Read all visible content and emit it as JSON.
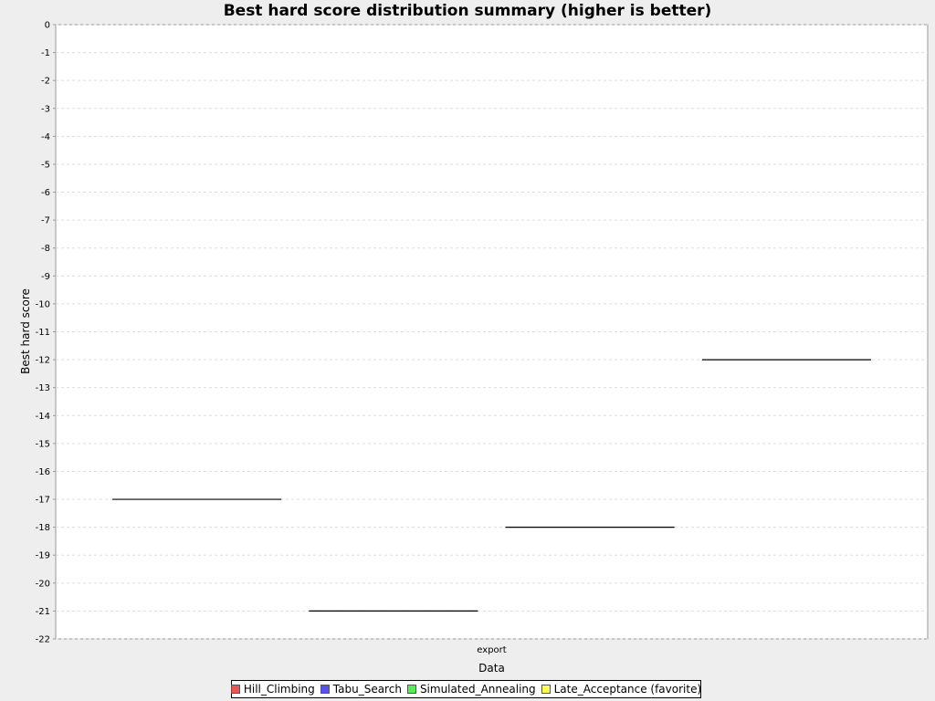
{
  "chart_data": {
    "type": "box",
    "title": "Best hard score distribution summary (higher is better)",
    "xlabel": "Data",
    "ylabel": "Best hard score",
    "categories": [
      "export"
    ],
    "ylim": [
      -22,
      0
    ],
    "yticks": [
      0,
      -1,
      -2,
      -3,
      -4,
      -5,
      -6,
      -7,
      -8,
      -9,
      -10,
      -11,
      -12,
      -13,
      -14,
      -15,
      -16,
      -17,
      -18,
      -19,
      -20,
      -21,
      -22
    ],
    "grid": true,
    "legend_placement": "bottom",
    "series": [
      {
        "name": "Hill_Climbing",
        "color": "#ee5555",
        "values": [
          -17
        ]
      },
      {
        "name": "Tabu_Search",
        "color": "#5555ee",
        "values": [
          -21
        ]
      },
      {
        "name": "Simulated_Annealing",
        "color": "#55ee55",
        "values": [
          -18
        ]
      },
      {
        "name": "Late_Acceptance (favorite)",
        "color": "#ffff55",
        "values": [
          -12
        ]
      }
    ]
  }
}
